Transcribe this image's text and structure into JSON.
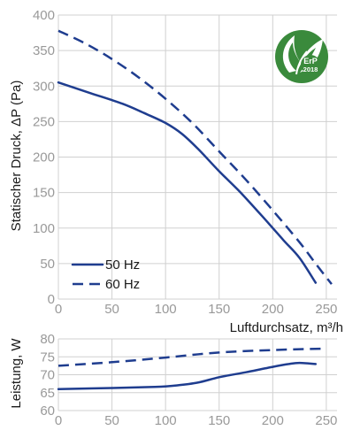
{
  "chart_data": [
    {
      "type": "line",
      "ylabel": "Statischer Druck, ΔP (Pa)",
      "xlabel": "Luftdurchsatz, m³/h",
      "xlim": [
        0,
        260
      ],
      "ylim": [
        0,
        400
      ],
      "xticks": [
        0,
        50,
        100,
        150,
        200,
        250
      ],
      "yticks": [
        0,
        50,
        100,
        150,
        200,
        250,
        300,
        350,
        400
      ],
      "grid": true,
      "legend_position": "bottom-left",
      "series": [
        {
          "name": "50 Hz",
          "style": "solid",
          "color": "#1f3d8f",
          "x": [
            0,
            30,
            60,
            80,
            100,
            115,
            130,
            150,
            170,
            190,
            210,
            225,
            240
          ],
          "y": [
            305,
            290,
            275,
            262,
            248,
            233,
            212,
            180,
            150,
            117,
            83,
            58,
            23
          ]
        },
        {
          "name": "60 Hz",
          "style": "dashed",
          "color": "#1f3d8f",
          "x": [
            0,
            25,
            50,
            75,
            100,
            125,
            150,
            175,
            200,
            225,
            240,
            255
          ],
          "y": [
            378,
            360,
            338,
            312,
            282,
            248,
            208,
            168,
            125,
            80,
            50,
            21
          ]
        }
      ]
    },
    {
      "type": "line",
      "ylabel": "Leistung, W",
      "xlabel": "",
      "xlim": [
        0,
        260
      ],
      "ylim": [
        60,
        80
      ],
      "xticks": [
        0,
        50,
        100,
        150,
        200,
        250
      ],
      "yticks": [
        60,
        65,
        70,
        75,
        80
      ],
      "grid": true,
      "series": [
        {
          "name": "50 Hz",
          "style": "solid",
          "color": "#1f3d8f",
          "x": [
            0,
            50,
            90,
            110,
            130,
            150,
            175,
            200,
            215,
            225,
            240
          ],
          "y": [
            66,
            66.3,
            66.6,
            67,
            67.8,
            69.3,
            70.7,
            72.2,
            73,
            73.3,
            73
          ]
        },
        {
          "name": "60 Hz",
          "style": "dashed",
          "color": "#1f3d8f",
          "x": [
            0,
            50,
            100,
            150,
            200,
            250
          ],
          "y": [
            72.5,
            73.5,
            74.8,
            76.2,
            76.9,
            77.3
          ]
        }
      ]
    }
  ],
  "badge": {
    "text_top": "ErP",
    "text_bottom": "2018",
    "color": "#3a8a3c",
    "icon": "leaf-icon"
  }
}
